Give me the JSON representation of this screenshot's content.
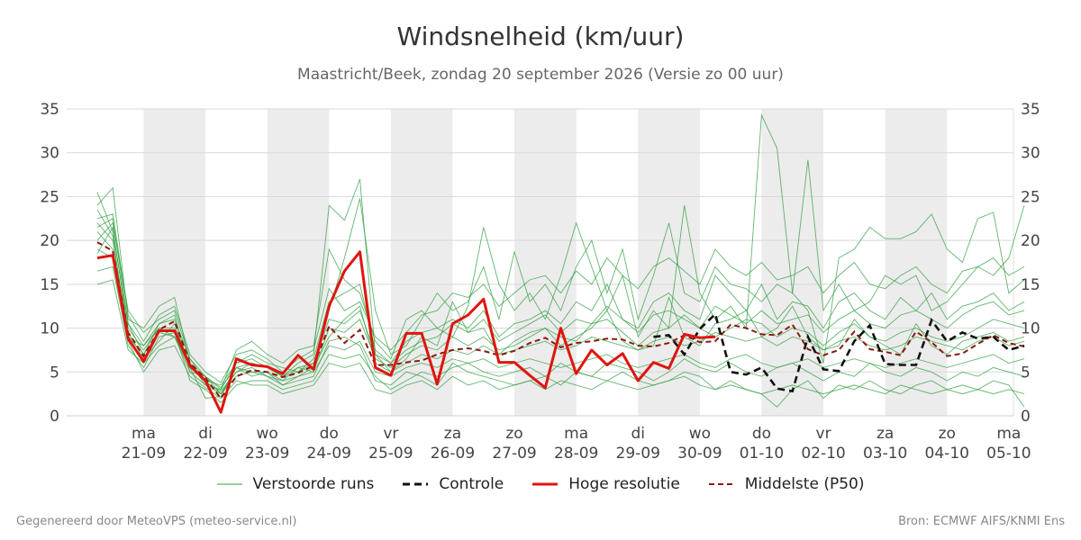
{
  "title": "Windsnelheid (km/uur)",
  "subtitle": "Maastricht/Beek, zondag 20 september 2026 (Versie zo 00 uur)",
  "legend": {
    "perturbed": "Verstoorde runs",
    "control": "Controle",
    "hires": "Hoge resolutie",
    "median": "Middelste (P50)"
  },
  "footer": {
    "left": "Gegenereerd door MeteoVPS (meteo-service.nl)",
    "right": "Bron: ECMWF AIFS/KNMI Ens"
  },
  "colors": {
    "perturbed": "#2e9e3e",
    "control": "#111111",
    "hires": "#e0140e",
    "median": "#8b1a0e",
    "shade": "#ececec",
    "grid": "#d8d8d8"
  },
  "chart_data": {
    "type": "line",
    "ylim": [
      0,
      35
    ],
    "yticks": [
      0,
      5,
      10,
      15,
      20,
      25,
      30,
      35
    ],
    "x_unit": "days after 2026-09-20 00:00",
    "xlim": [
      0,
      15.0
    ],
    "date_ticks": [
      {
        "x": 0.75,
        "day": "ma",
        "date": "21-09"
      },
      {
        "x": 1.75,
        "day": "di",
        "date": "22-09"
      },
      {
        "x": 2.75,
        "day": "wo",
        "date": "23-09"
      },
      {
        "x": 3.75,
        "day": "do",
        "date": "24-09"
      },
      {
        "x": 4.75,
        "day": "vr",
        "date": "25-09"
      },
      {
        "x": 5.75,
        "day": "za",
        "date": "26-09"
      },
      {
        "x": 6.75,
        "day": "zo",
        "date": "27-09"
      },
      {
        "x": 7.75,
        "day": "ma",
        "date": "28-09"
      },
      {
        "x": 8.75,
        "day": "di",
        "date": "29-09"
      },
      {
        "x": 9.75,
        "day": "wo",
        "date": "30-09"
      },
      {
        "x": 10.75,
        "day": "do",
        "date": "01-10"
      },
      {
        "x": 11.75,
        "day": "vr",
        "date": "02-10"
      },
      {
        "x": 12.75,
        "day": "za",
        "date": "03-10"
      },
      {
        "x": 13.75,
        "day": "zo",
        "date": "04-10"
      },
      {
        "x": 14.75,
        "day": "ma",
        "date": "05-10"
      }
    ],
    "shaded_days": [
      [
        0.75,
        1.75
      ],
      [
        2.75,
        3.75
      ],
      [
        4.75,
        5.75
      ],
      [
        6.75,
        7.75
      ],
      [
        8.75,
        9.75
      ],
      [
        10.75,
        11.75
      ],
      [
        12.75,
        13.75
      ]
    ],
    "hires": {
      "name": "Hoge resolutie",
      "x": [
        0,
        0.25,
        0.5,
        0.75,
        1.0,
        1.25,
        1.5,
        1.75,
        2.0,
        2.25,
        2.5,
        2.75,
        3.0,
        3.25,
        3.5,
        3.75,
        4.0,
        4.25,
        4.5,
        4.75,
        5.0,
        5.25,
        5.5,
        5.75,
        6.0,
        6.25,
        6.5,
        6.75,
        7.0,
        7.25,
        7.5,
        7.75,
        8.0,
        8.25,
        8.5,
        8.75,
        9.0,
        9.25,
        9.5,
        9.75,
        10.0
      ],
      "values": [
        18.0,
        18.3,
        8.8,
        6.2,
        9.7,
        9.7,
        5.7,
        4.0,
        0.4,
        6.5,
        5.8,
        5.6,
        4.8,
        6.9,
        5.3,
        12.5,
        16.5,
        18.7,
        5.5,
        4.6,
        9.4,
        9.4,
        3.6,
        10.5,
        11.5,
        13.3,
        6.1,
        6.1,
        4.6,
        3.2,
        10.0,
        4.8,
        7.5,
        5.8,
        7.1,
        4.0,
        6.1,
        5.4,
        9.3,
        8.9,
        9.0
      ]
    },
    "control": {
      "name": "Controle",
      "x": [
        9.0,
        9.25,
        9.5,
        9.75,
        10.0,
        10.25,
        10.5,
        10.75,
        11.0,
        11.25,
        11.5,
        11.75,
        12.0,
        12.25,
        12.5,
        12.75,
        13.0,
        13.25,
        13.5,
        13.75,
        14.0,
        14.25,
        14.5,
        14.75,
        15.0
      ],
      "values": [
        9.0,
        9.2,
        7.0,
        9.9,
        11.6,
        5.0,
        4.7,
        5.5,
        3.1,
        2.8,
        9.0,
        5.3,
        5.1,
        8.5,
        10.3,
        5.9,
        5.8,
        5.8,
        10.9,
        8.5,
        9.5,
        8.8,
        9.0,
        7.5,
        8.0
      ]
    },
    "median": {
      "name": "Middelste (P50)",
      "x": [
        0,
        0.25,
        0.5,
        0.75,
        1.0,
        1.25,
        1.5,
        1.75,
        2.0,
        2.25,
        2.5,
        2.75,
        3.0,
        3.25,
        3.5,
        3.75,
        4.0,
        4.25,
        4.5,
        4.75,
        5.0,
        5.25,
        5.5,
        5.75,
        6.0,
        6.25,
        6.5,
        6.75,
        7.0,
        7.25,
        7.5,
        7.75,
        8.0,
        8.25,
        8.5,
        8.75,
        9.0,
        9.25,
        9.5,
        9.75,
        10.0,
        10.25,
        10.5,
        10.75,
        11.0,
        11.25,
        11.5,
        11.75,
        12.0,
        12.25,
        12.5,
        12.75,
        13.0,
        13.25,
        13.5,
        13.75,
        14.0,
        14.25,
        14.5,
        14.75,
        15.0
      ],
      "values": [
        19.8,
        18.8,
        9.5,
        6.8,
        9.8,
        10.8,
        6.0,
        4.3,
        2.0,
        4.5,
        5.2,
        5.0,
        4.4,
        4.9,
        5.7,
        10.2,
        8.3,
        9.8,
        5.8,
        5.8,
        6.1,
        6.3,
        7.0,
        7.5,
        7.7,
        7.4,
        6.9,
        7.4,
        8.3,
        8.9,
        7.8,
        8.3,
        8.5,
        8.8,
        8.7,
        8.0,
        7.9,
        8.3,
        9.2,
        8.4,
        8.5,
        10.4,
        10.0,
        9.3,
        9.2,
        10.4,
        7.6,
        6.9,
        7.5,
        9.6,
        7.6,
        7.3,
        6.9,
        9.6,
        8.4,
        6.8,
        7.1,
        8.2,
        9.2,
        8.3,
        7.9
      ]
    },
    "ensemble": {
      "name": "Verstoorde runs",
      "x": [
        0,
        0.25,
        0.5,
        0.75,
        1.0,
        1.25,
        1.5,
        1.75,
        2.0,
        2.25,
        2.5,
        2.75,
        3.0,
        3.25,
        3.5,
        3.75,
        4.0,
        4.25,
        4.5,
        4.75,
        5.0,
        5.25,
        5.5,
        5.75,
        6.0,
        6.25,
        6.5,
        6.75,
        7.0,
        7.25,
        7.5,
        7.75,
        8.0,
        8.25,
        8.5,
        8.75,
        9.0,
        9.25,
        9.5,
        9.75,
        10.0,
        10.25,
        10.5,
        10.75,
        11.0,
        11.25,
        11.5,
        11.75,
        12.0,
        12.25,
        12.5,
        12.75,
        13.0,
        13.25,
        13.5,
        13.75,
        14.0,
        14.25,
        14.5,
        14.75,
        15.0
      ],
      "runs": [
        [
          25.5,
          21.0,
          10.5,
          7.0,
          10.5,
          11.5,
          5.0,
          4.5,
          2.5,
          5.0,
          6.0,
          5.5,
          4.5,
          6.0,
          7.0,
          24.0,
          22.3,
          27.0,
          7.0,
          5.0,
          6.5,
          9.0,
          8.0,
          13.0,
          9.5,
          10.0,
          7.0,
          8.5,
          9.5,
          10.0,
          8.0,
          9.0,
          10.0,
          12.0,
          8.5,
          7.5,
          8.0,
          13.5,
          9.0,
          8.0,
          10.5,
          11.0,
          12.0,
          9.0,
          10.0,
          12.5,
          9.0,
          7.5,
          8.0,
          11.0,
          9.0,
          8.0,
          7.0,
          10.5,
          8.0,
          7.0,
          8.5,
          9.0,
          9.5,
          8.5,
          9.0
        ],
        [
          24.0,
          26.0,
          11.0,
          10.0,
          12.5,
          13.5,
          6.0,
          3.5,
          3.0,
          7.5,
          8.5,
          7.0,
          6.0,
          7.5,
          8.0,
          19.0,
          15.5,
          14.0,
          8.5,
          6.5,
          11.0,
          12.0,
          10.0,
          9.0,
          12.5,
          21.5,
          15.0,
          12.0,
          14.0,
          11.0,
          16.0,
          22.0,
          17.0,
          12.0,
          16.0,
          9.0,
          12.0,
          10.0,
          24.0,
          14.0,
          11.0,
          12.5,
          10.0,
          34.3,
          30.5,
          14.0,
          12.0,
          6.0,
          18.0,
          19.0,
          21.5,
          20.2,
          20.2,
          21.0,
          23.0,
          19.0,
          17.5,
          22.5,
          23.2,
          14.0,
          15.5
        ],
        [
          22.0,
          20.0,
          9.0,
          8.0,
          10.0,
          9.0,
          5.5,
          2.0,
          2.2,
          5.5,
          4.5,
          5.0,
          3.5,
          4.0,
          4.5,
          8.5,
          9.0,
          8.0,
          4.0,
          3.5,
          5.0,
          4.5,
          3.5,
          6.0,
          5.0,
          4.5,
          4.0,
          3.5,
          4.0,
          4.5,
          3.5,
          5.0,
          4.5,
          4.0,
          5.0,
          4.0,
          3.5,
          4.0,
          5.0,
          4.5,
          3.0,
          4.0,
          3.0,
          2.5,
          1.0,
          3.0,
          4.0,
          2.0,
          3.5,
          3.0,
          4.0,
          3.0,
          2.5,
          3.5,
          4.0,
          3.0,
          2.5,
          3.0,
          4.0,
          3.5,
          1.0
        ],
        [
          20.0,
          22.0,
          12.0,
          9.5,
          11.0,
          12.0,
          6.5,
          4.0,
          3.5,
          6.0,
          7.0,
          6.0,
          5.5,
          5.0,
          6.0,
          12.0,
          18.0,
          24.8,
          12.0,
          7.0,
          8.0,
          11.0,
          14.0,
          12.0,
          13.0,
          17.0,
          11.0,
          18.7,
          13.0,
          15.0,
          12.0,
          17.0,
          20.0,
          14.0,
          19.0,
          11.0,
          16.0,
          22.0,
          14.0,
          13.0,
          17.0,
          15.0,
          14.5,
          13.0,
          15.0,
          14.0,
          29.2,
          12.0,
          15.0,
          12.0,
          13.0,
          16.0,
          15.0,
          16.0,
          12.0,
          13.0,
          15.0,
          17.0,
          16.0,
          18.0,
          24.0
        ],
        [
          16.5,
          17.0,
          8.0,
          5.5,
          9.0,
          9.5,
          4.0,
          3.0,
          1.5,
          3.5,
          4.0,
          4.0,
          3.0,
          3.5,
          4.0,
          7.0,
          6.5,
          7.0,
          4.5,
          3.0,
          4.0,
          5.0,
          4.5,
          5.5,
          6.0,
          5.0,
          4.5,
          5.0,
          5.5,
          4.5,
          6.0,
          5.0,
          4.5,
          6.0,
          5.5,
          5.0,
          4.0,
          5.0,
          6.5,
          5.5,
          5.0,
          6.0,
          5.0,
          4.5,
          5.5,
          6.0,
          5.0,
          4.0,
          5.0,
          4.5,
          6.0,
          5.0,
          4.5,
          5.5,
          5.0,
          4.0,
          5.0,
          4.5,
          5.5,
          5.0,
          4.5
        ],
        [
          21.0,
          19.0,
          10.0,
          7.5,
          10.0,
          10.0,
          6.0,
          3.8,
          2.8,
          5.0,
          5.5,
          4.5,
          4.0,
          5.5,
          5.0,
          10.0,
          9.5,
          11.0,
          6.5,
          5.5,
          7.0,
          8.0,
          7.5,
          9.0,
          8.0,
          9.0,
          7.5,
          8.0,
          9.0,
          10.0,
          9.0,
          8.5,
          10.5,
          11.0,
          9.5,
          8.0,
          9.5,
          10.0,
          11.5,
          10.0,
          9.0,
          10.0,
          11.0,
          10.5,
          9.0,
          10.0,
          9.5,
          8.0,
          9.5,
          10.5,
          9.0,
          8.5,
          9.5,
          10.0,
          9.0,
          8.5,
          9.0,
          10.0,
          11.0,
          10.5,
          10.0
        ],
        [
          18.5,
          21.5,
          9.5,
          6.5,
          8.5,
          10.5,
          5.5,
          4.5,
          3.0,
          6.0,
          6.5,
          5.5,
          4.5,
          5.0,
          6.5,
          13.0,
          14.0,
          15.0,
          7.5,
          6.0,
          8.5,
          9.5,
          10.0,
          11.0,
          10.0,
          12.0,
          9.0,
          10.5,
          11.0,
          12.0,
          10.5,
          13.0,
          12.0,
          15.0,
          11.0,
          10.0,
          13.0,
          14.0,
          12.0,
          11.0,
          16.0,
          14.0,
          12.0,
          15.0,
          11.0,
          13.0,
          12.5,
          10.0,
          13.0,
          14.0,
          12.0,
          11.0,
          13.5,
          12.0,
          14.0,
          11.0,
          12.5,
          13.0,
          14.0,
          12.0,
          13.0
        ],
        [
          23.5,
          20.5,
          8.5,
          5.0,
          7.5,
          8.0,
          4.5,
          3.2,
          2.0,
          4.0,
          3.5,
          3.5,
          2.5,
          3.0,
          3.5,
          6.0,
          5.5,
          6.0,
          3.0,
          2.5,
          3.5,
          4.0,
          3.0,
          4.5,
          3.5,
          4.0,
          3.0,
          3.5,
          4.0,
          3.0,
          4.0,
          3.5,
          3.0,
          4.0,
          3.5,
          3.0,
          3.5,
          4.0,
          4.5,
          3.5,
          3.0,
          3.5,
          3.0,
          2.5,
          3.0,
          3.5,
          3.0,
          2.5,
          3.0,
          3.5,
          3.0,
          2.5,
          3.5,
          3.0,
          2.5,
          3.0,
          3.5,
          3.0,
          2.5,
          3.0,
          2.5
        ],
        [
          15.0,
          15.5,
          7.5,
          6.0,
          8.0,
          9.0,
          5.0,
          3.5,
          2.5,
          5.5,
          5.0,
          5.0,
          4.0,
          4.5,
          5.5,
          9.0,
          11.0,
          12.5,
          6.0,
          5.0,
          6.0,
          7.0,
          6.5,
          7.5,
          7.0,
          8.0,
          7.0,
          7.5,
          8.0,
          8.5,
          7.5,
          8.0,
          9.0,
          8.5,
          8.0,
          7.5,
          8.5,
          9.0,
          8.0,
          8.5,
          9.5,
          9.0,
          8.5,
          9.0,
          8.0,
          9.0,
          8.5,
          7.5,
          8.5,
          9.0,
          8.0,
          7.5,
          8.0,
          9.0,
          8.5,
          8.0,
          7.5,
          8.5,
          9.0,
          8.0,
          8.5
        ],
        [
          22.5,
          23.0,
          11.5,
          8.5,
          11.5,
          12.5,
          7.0,
          5.0,
          3.8,
          7.0,
          7.5,
          6.5,
          5.0,
          6.5,
          7.5,
          14.5,
          12.0,
          13.0,
          9.0,
          7.5,
          9.5,
          11.5,
          12.0,
          14.0,
          13.5,
          15.0,
          12.5,
          14.0,
          15.5,
          16.0,
          14.0,
          16.5,
          15.0,
          18.0,
          16.0,
          14.5,
          17.0,
          18.0,
          16.5,
          15.0,
          19.0,
          17.0,
          16.0,
          17.5,
          15.5,
          16.0,
          17.0,
          14.0,
          16.0,
          17.5,
          15.0,
          14.5,
          16.0,
          17.0,
          15.0,
          14.0,
          16.5,
          17.0,
          18.0,
          16.0,
          17.0
        ],
        [
          19.0,
          18.0,
          9.0,
          7.0,
          9.5,
          9.0,
          6.0,
          4.0,
          2.5,
          4.5,
          5.0,
          4.5,
          3.5,
          4.5,
          5.0,
          8.0,
          7.5,
          8.5,
          5.0,
          4.5,
          5.5,
          6.0,
          5.5,
          6.5,
          6.0,
          6.5,
          5.5,
          6.0,
          6.5,
          6.0,
          5.5,
          6.0,
          6.5,
          7.0,
          6.0,
          5.5,
          6.0,
          6.5,
          7.0,
          6.0,
          5.5,
          6.5,
          7.0,
          6.0,
          5.5,
          6.0,
          6.5,
          5.5,
          6.0,
          6.5,
          6.0,
          5.5,
          6.0,
          6.5,
          6.0,
          5.5,
          6.0,
          6.5,
          7.0,
          6.0,
          6.5
        ],
        [
          21.5,
          22.5,
          10.5,
          8.0,
          10.5,
          11.0,
          6.5,
          4.5,
          3.2,
          5.5,
          6.0,
          5.5,
          4.5,
          5.5,
          6.0,
          11.0,
          10.5,
          12.0,
          7.0,
          6.0,
          7.5,
          8.5,
          9.0,
          10.5,
          9.5,
          11.0,
          8.5,
          9.5,
          10.5,
          11.5,
          9.5,
          11.0,
          10.5,
          12.5,
          11.0,
          9.5,
          11.5,
          12.0,
          11.0,
          10.0,
          12.5,
          11.5,
          10.5,
          12.0,
          10.5,
          11.0,
          11.5,
          9.5,
          11.0,
          12.0,
          10.5,
          10.0,
          11.5,
          12.0,
          11.0,
          10.0,
          11.5,
          12.5,
          13.0,
          11.5,
          12.0
        ]
      ]
    }
  }
}
